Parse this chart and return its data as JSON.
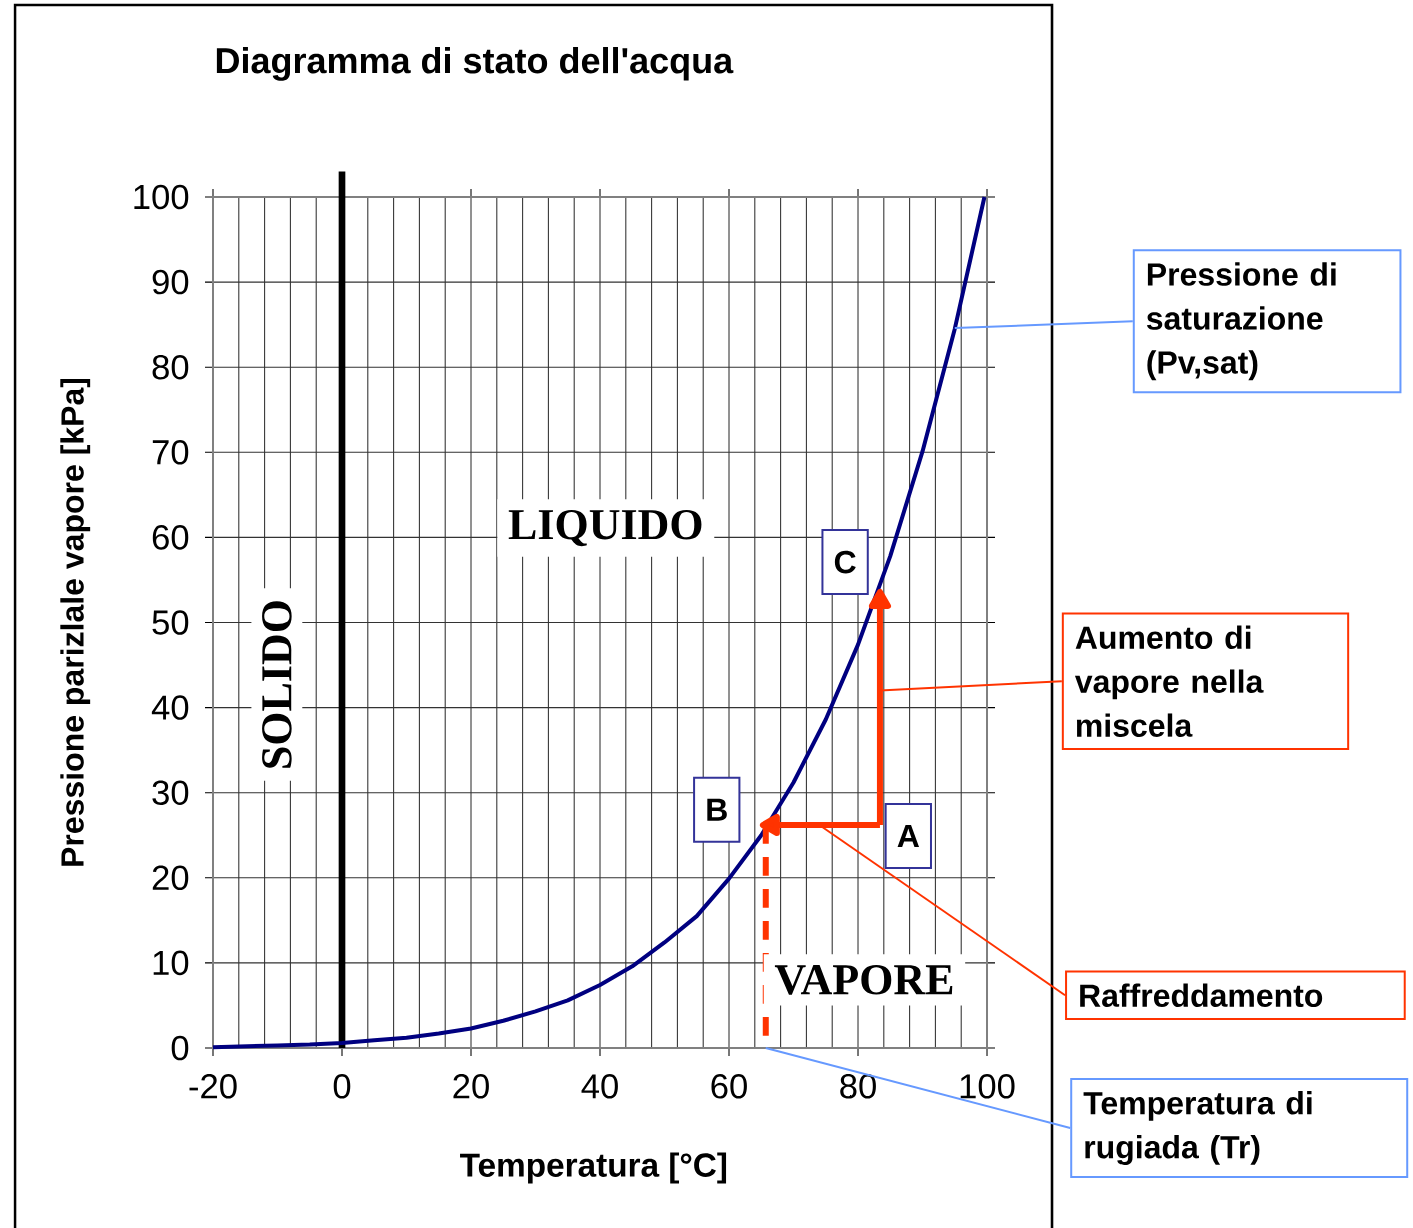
{
  "chart_data": {
    "type": "line",
    "title": "Diagramma di stato dell'acqua",
    "xlabel": "Temperatura [°C]",
    "ylabel": "Pressione parizlale vapore [kPa]",
    "xlim": [
      -20,
      100
    ],
    "ylim": [
      0,
      100
    ],
    "xticks": [
      -20,
      0,
      20,
      40,
      60,
      80,
      100
    ],
    "yticks": [
      0,
      10,
      20,
      30,
      40,
      50,
      60,
      70,
      80,
      90,
      100
    ],
    "grid": true,
    "marker": "none",
    "line_style": "solid",
    "series": [
      {
        "color": "#000080",
        "x": [
          -20,
          -15,
          -10,
          -5,
          0,
          5,
          10,
          15,
          20,
          25,
          30,
          35,
          40,
          45,
          50,
          55,
          60,
          65,
          70,
          75,
          80,
          85,
          90,
          95,
          99.6
        ],
        "values": [
          0.1,
          0.2,
          0.3,
          0.4,
          0.6,
          0.9,
          1.2,
          1.7,
          2.3,
          3.2,
          4.3,
          5.6,
          7.4,
          9.6,
          12.4,
          15.5,
          19.9,
          25.0,
          31.2,
          38.6,
          47.4,
          57.8,
          70.1,
          84.5,
          100
        ]
      },
      {
        "color": "#ff3300",
        "x": [
          83.4,
          66.7
        ],
        "values": [
          26.2,
          26.2
        ],
        "marker": "triangle"
      },
      {
        "color": "#ff3300",
        "x": [
          83.4,
          83.4
        ],
        "values": [
          26.2,
          52.5
        ],
        "marker": "triangle"
      },
      {
        "color": "#ff3300",
        "x": [
          65.7,
          65.7
        ],
        "values": [
          26.2,
          0
        ],
        "line_style": "dashed"
      }
    ],
    "ref_lines": [
      {
        "axis": "x",
        "value": 0,
        "color": "#000000"
      }
    ],
    "annotations": [
      {
        "text": "A",
        "x": 83.4,
        "y": 26.2
      },
      {
        "text": "B",
        "x": 66.7,
        "y": 26.2
      },
      {
        "text": "C",
        "x": 83.4,
        "y": 52.5
      },
      {
        "text": "Pressione di saturazione (Pv,sat)",
        "x": 95,
        "y": 84.6
      },
      {
        "text": "Aumento di vapore nella miscela",
        "x": 83.4,
        "y": 42
      },
      {
        "text": "Raffreddamento",
        "x": 74.4,
        "y": 26
      },
      {
        "text": "Temperatura di rugiada (Tr)",
        "x": 65.7,
        "y": 0
      },
      "SOLIDO",
      "LIQUIDO",
      "VAPORE"
    ]
  }
}
